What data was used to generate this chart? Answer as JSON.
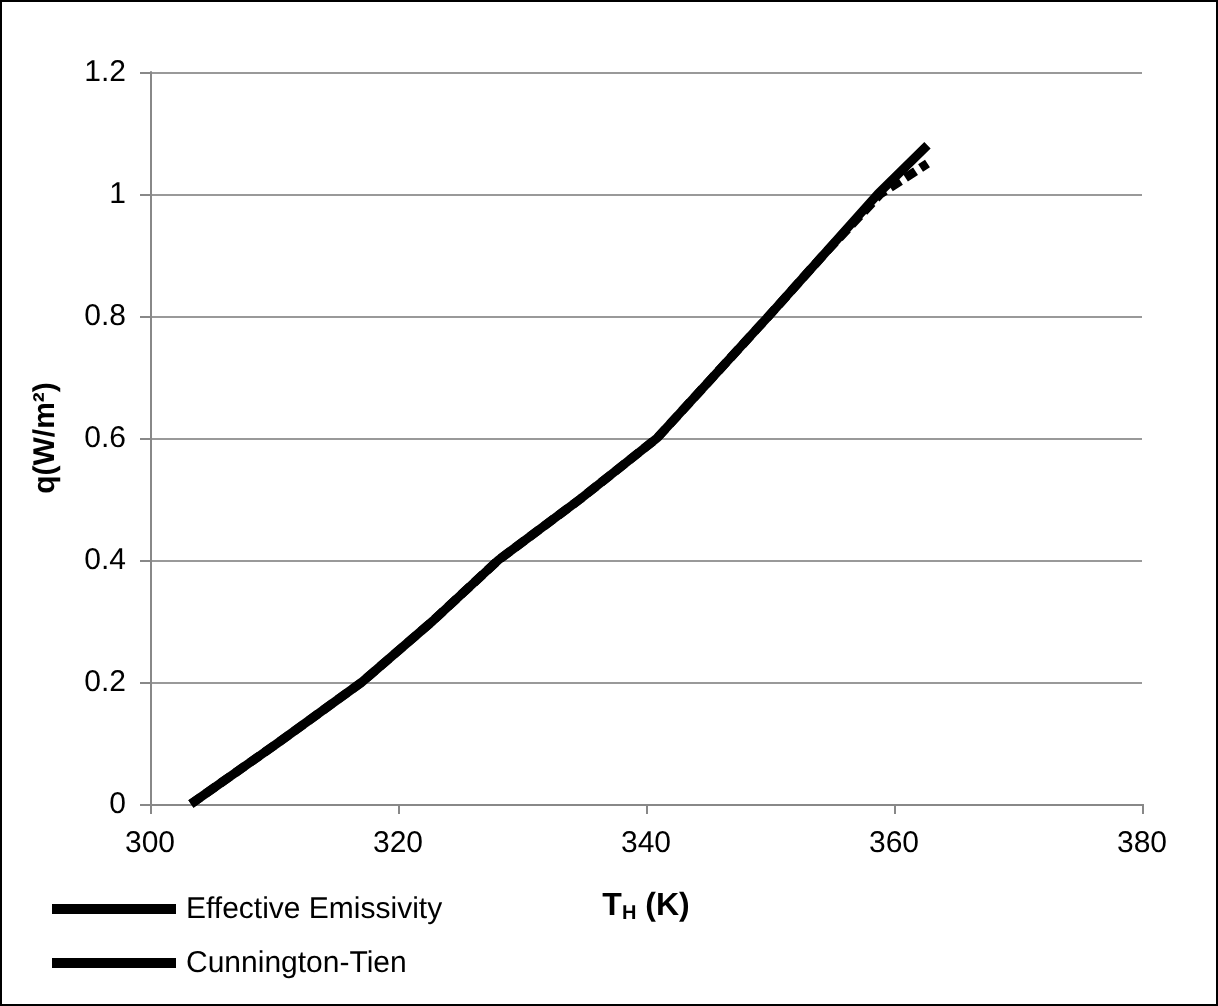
{
  "chart_data": {
    "type": "line",
    "xlabel": "T$_{H}$ (K)",
    "ylabel": "q(W/m²)",
    "xlim": [
      300,
      380
    ],
    "xticks": [
      300,
      320,
      340,
      360,
      380
    ],
    "ylim": [
      0,
      1.2
    ],
    "yticks": [
      0,
      0.2,
      0.4,
      0.6,
      0.8,
      1,
      1.2
    ],
    "grid": "y",
    "legend": "bottom left",
    "marker": "none",
    "series": [
      {
        "name": "Effective Emissivity",
        "color": "#000000",
        "line_style": "solid",
        "x": [
          303.3,
          310.3,
          317.1,
          322.8,
          328.1,
          334.7,
          340.9,
          345.4,
          349.9,
          354.3,
          358.7,
          362.7
        ],
        "values": [
          0,
          0.1,
          0.2,
          0.3,
          0.4,
          0.5,
          0.6,
          0.7,
          0.8,
          0.9,
          1.0,
          1.08
        ]
      },
      {
        "name": "Cunnington-Tien",
        "color": "#000000",
        "line_style": "dashed",
        "x": [
          303.3,
          310.3,
          317.1,
          322.8,
          328.1,
          334.7,
          340.9,
          345.4,
          349.9,
          354.3,
          358.9,
          362.7
        ],
        "values": [
          0,
          0.1,
          0.2,
          0.3,
          0.4,
          0.5,
          0.6,
          0.7,
          0.8,
          0.9,
          1.0,
          1.05
        ]
      }
    ]
  }
}
